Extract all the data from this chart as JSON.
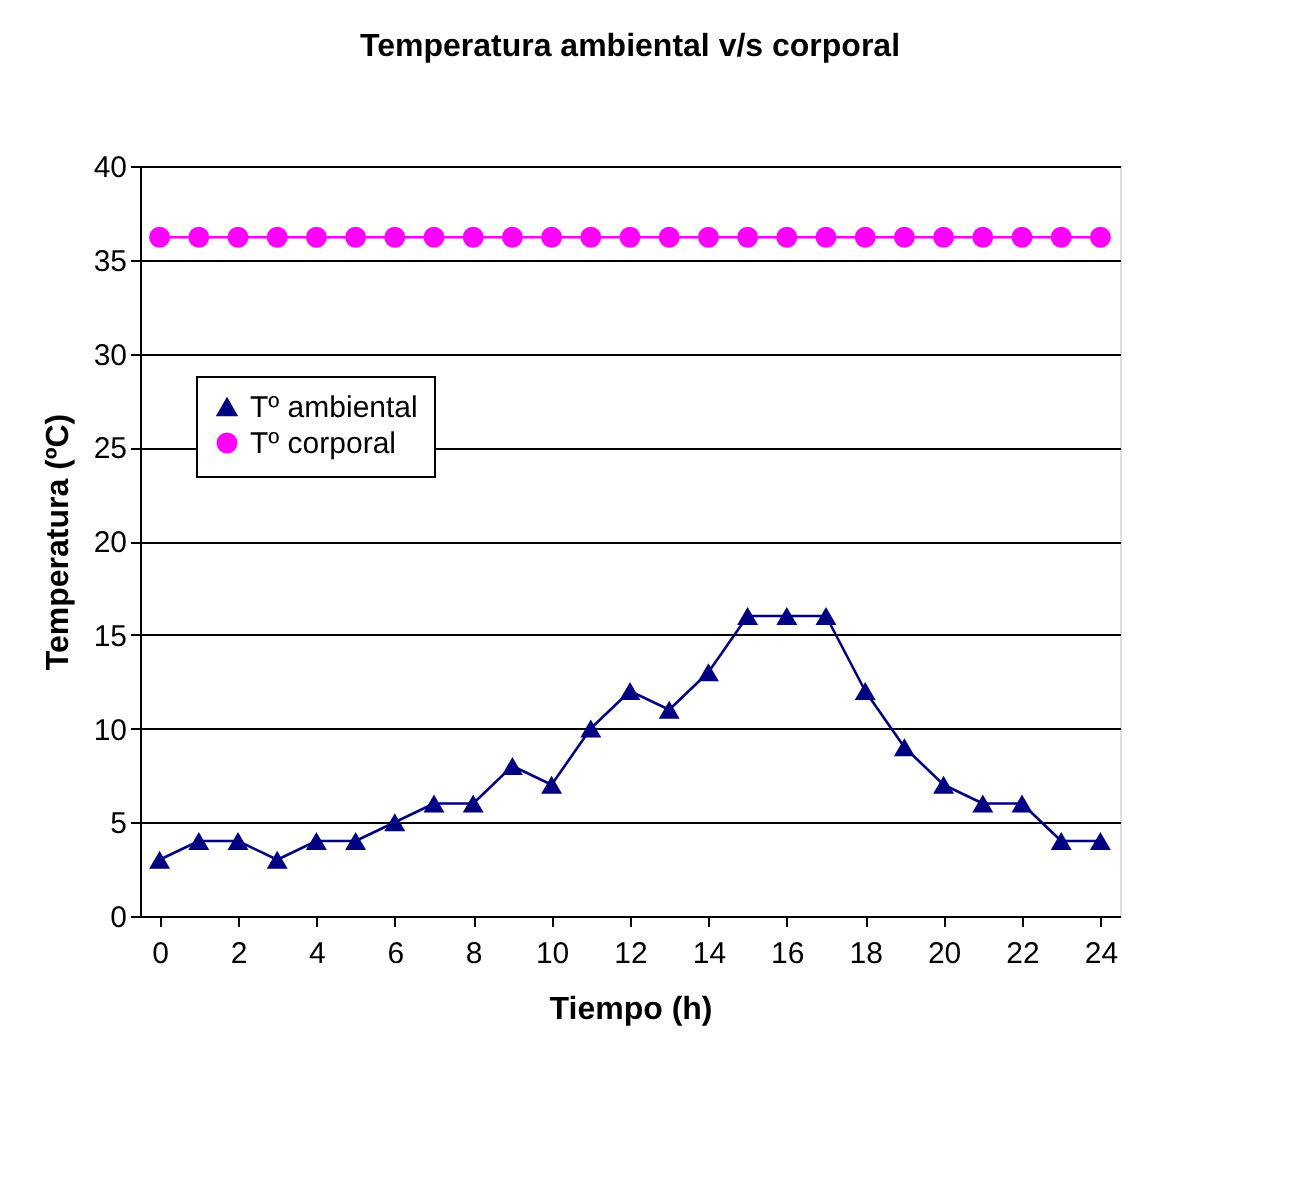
{
  "chart_data": {
    "type": "line",
    "title": "Temperatura ambiental v/s corporal",
    "xlabel": "Tiempo (h)",
    "ylabel": "Temperatura (ºC)",
    "x": [
      0,
      1,
      2,
      3,
      4,
      5,
      6,
      7,
      8,
      9,
      10,
      11,
      12,
      13,
      14,
      15,
      16,
      17,
      18,
      19,
      20,
      21,
      22,
      23,
      24
    ],
    "series": [
      {
        "name": "Tº ambiental",
        "color": "#000080",
        "marker": "triangle",
        "values": [
          3,
          4,
          4,
          3,
          4,
          4,
          5,
          6,
          6,
          8,
          7,
          10,
          12,
          11,
          13,
          16,
          16,
          16,
          12,
          9,
          7,
          6,
          6,
          4,
          4
        ]
      },
      {
        "name": "Tº corporal",
        "color": "#ff00ff",
        "marker": "circle",
        "values": [
          36.2,
          36.2,
          36.2,
          36.2,
          36.2,
          36.2,
          36.2,
          36.2,
          36.2,
          36.2,
          36.2,
          36.2,
          36.2,
          36.2,
          36.2,
          36.2,
          36.2,
          36.2,
          36.2,
          36.2,
          36.2,
          36.2,
          36.2,
          36.2,
          36.2
        ]
      }
    ],
    "xlim": [
      -0.5,
      24.5
    ],
    "xticks": [
      0,
      2,
      4,
      6,
      8,
      10,
      12,
      14,
      16,
      18,
      20,
      22,
      24
    ],
    "ylim": [
      0,
      40
    ],
    "yticks": [
      0,
      5,
      10,
      15,
      20,
      25,
      30,
      35,
      40
    ],
    "grid": "y",
    "legend": "left",
    "line_style": "solid"
  }
}
